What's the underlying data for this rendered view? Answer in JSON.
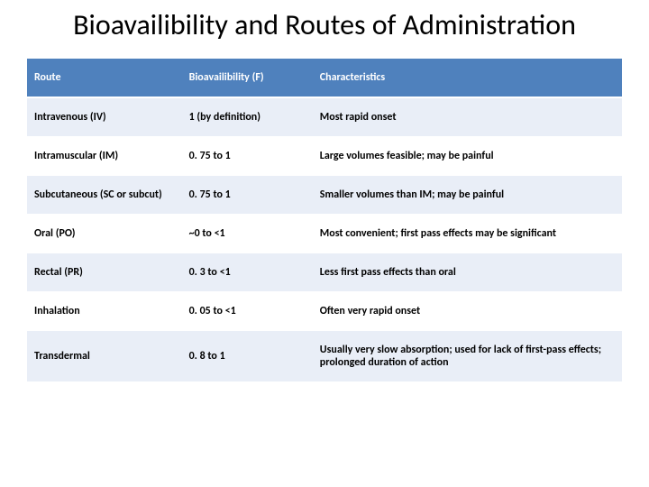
{
  "title": "Bioavailibility and Routes of Administration",
  "table": {
    "header_bg": "#4f81bd",
    "header_fg": "#ffffff",
    "band_light": "#e9eef7",
    "band_white": "#ffffff",
    "font_size_header": 12,
    "font_size_cell": 12,
    "columns": [
      "Route",
      "Bioavailibility (F)",
      "Characteristics"
    ],
    "col_widths_pct": [
      26,
      22,
      52
    ],
    "rows": [
      {
        "route": "Intravenous (IV)",
        "f": "1 (by definition)",
        "char": "Most rapid onset"
      },
      {
        "route": "Intramuscular (IM)",
        "f": "0. 75 to 1",
        "char": "Large volumes feasible; may be painful"
      },
      {
        "route": "Subcutaneous (SC or subcut)",
        "f": "0. 75 to 1",
        "char": "Smaller volumes than IM; may be painful"
      },
      {
        "route": "Oral (PO)",
        "f": "~0 to <1",
        "char": "Most convenient; first pass effects may be significant"
      },
      {
        "route": "Rectal (PR)",
        "f": "0. 3 to <1",
        "char": "Less first pass effects than oral"
      },
      {
        "route": "Inhalation",
        "f": "0. 05 to <1",
        "char": "Often very rapid onset"
      },
      {
        "route": "Transdermal",
        "f": "0. 8 to 1",
        "char": "Usually very slow absorption; used for lack of first-pass effects; prolonged duration of action"
      }
    ]
  }
}
